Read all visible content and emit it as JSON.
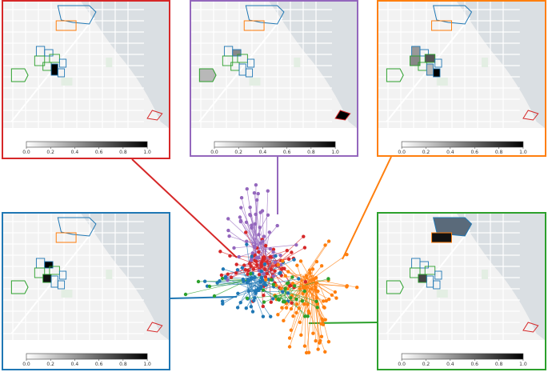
{
  "colorbar": {
    "ticks": [
      "0.0",
      "0.2",
      "0.4",
      "0.6",
      "0.8",
      "1.0"
    ]
  },
  "colors": {
    "red": "#d62728",
    "purple": "#9467bd",
    "orange": "#ff7f0e",
    "blue": "#1f77b4",
    "green": "#2ca02c",
    "water": "#dadfe3",
    "land": "#f2f2f2"
  },
  "panels": [
    {
      "key": "red",
      "border": "#d62728"
    },
    {
      "key": "purple",
      "border": "#9467bd"
    },
    {
      "key": "orange",
      "border": "#ff7f0e"
    },
    {
      "key": "blue",
      "border": "#1f77b4"
    },
    {
      "key": "green",
      "border": "#2ca02c"
    }
  ]
}
